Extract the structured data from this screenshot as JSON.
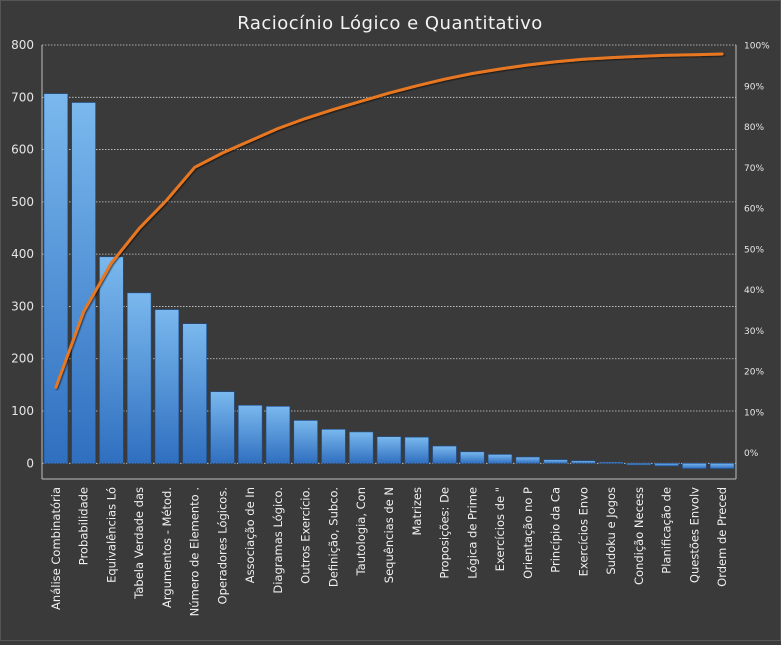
{
  "chart_data": {
    "type": "bar",
    "title": "Raciocínio Lógico e Quantitativo",
    "xlabel": "",
    "ylabel": "",
    "ylim": [
      -30,
      800
    ],
    "y_ticks": [
      0,
      100,
      200,
      300,
      400,
      500,
      600,
      700,
      800
    ],
    "y2lim": [
      -0.065,
      1.0
    ],
    "y2_ticks": [
      "0%",
      "10%",
      "20%",
      "30%",
      "40%",
      "50%",
      "60%",
      "70%",
      "80%",
      "90%",
      "100%"
    ],
    "grid": true,
    "legend": "none",
    "colors": {
      "bar": "#4a8fd8",
      "bar_light": "#7ab8ee",
      "line": "#e87722",
      "background": "#3a3a3a",
      "grid": "#d0d0d0"
    },
    "categories": [
      "Análise Combinatória",
      "Probabilidade",
      "Equivalências Ló",
      "Tabela Verdade das",
      "Argumentos - Métod.",
      "Número de Elemento .",
      "Operadores Lógicos.",
      "Associação de In",
      "Diagramas Lógico.",
      "Outros Exercício.",
      "Definição, Subco.",
      "Tautologia, Con",
      "Sequências de N",
      "Matrizes",
      "Proposições: De",
      "Lógica de Prime",
      "Exercícios de \"",
      "Orientação no P",
      "Princípio da Ca",
      "Exercícios Envo",
      "Sudoku e Jogos",
      "Condição Necess",
      "Planificação de",
      "Questões Envolv",
      "Ordem de Preced"
    ],
    "series": [
      {
        "type": "bar",
        "values": [
          707,
          690,
          395,
          326,
          294,
          267,
          137,
          111,
          109,
          82,
          65,
          60,
          51,
          50,
          33,
          22,
          17,
          12,
          7,
          5,
          2,
          -3,
          -5,
          -10,
          -10
        ]
      },
      {
        "type": "line",
        "axis": "secondary",
        "values": [
          0.16,
          0.345,
          0.465,
          0.55,
          0.62,
          0.7,
          0.735,
          0.765,
          0.795,
          0.82,
          0.842,
          0.862,
          0.882,
          0.9,
          0.916,
          0.93,
          0.941,
          0.951,
          0.959,
          0.965,
          0.969,
          0.972,
          0.975,
          0.976,
          0.978
        ]
      }
    ]
  }
}
